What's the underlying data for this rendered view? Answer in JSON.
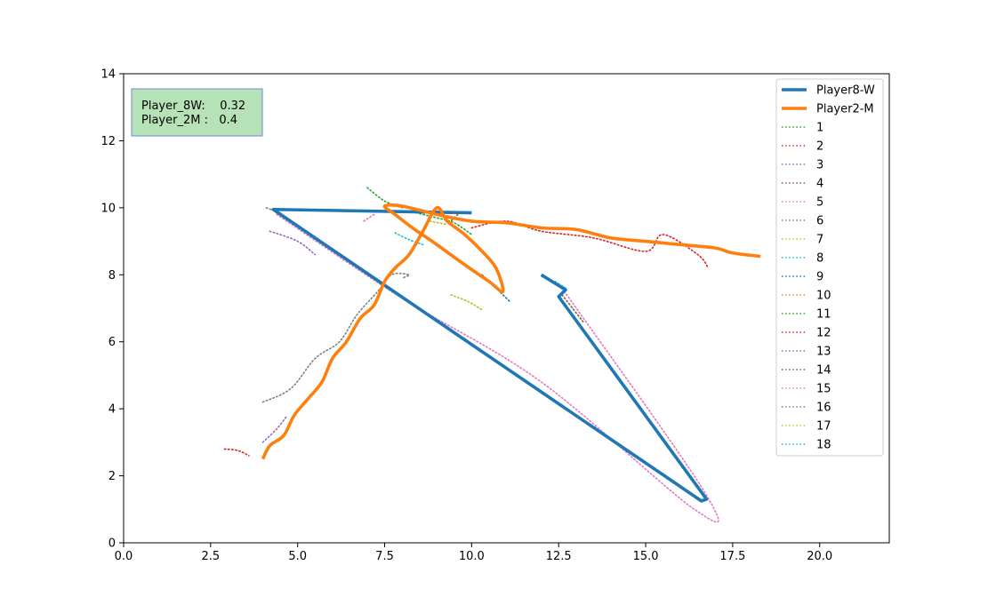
{
  "chart_data": {
    "type": "line",
    "title": "",
    "xlabel": "",
    "ylabel": "",
    "xlim": [
      0,
      22
    ],
    "ylim": [
      0,
      14
    ],
    "xticks": [
      "0.0",
      "2.5",
      "5.0",
      "7.5",
      "10.0",
      "12.5",
      "15.0",
      "17.5",
      "20.0"
    ],
    "xtick_values": [
      0,
      2.5,
      5,
      7.5,
      10,
      12.5,
      15,
      17.5,
      20
    ],
    "yticks": [
      "0",
      "2",
      "4",
      "6",
      "8",
      "10",
      "12",
      "14"
    ],
    "ytick_values": [
      0,
      2,
      4,
      6,
      8,
      10,
      12,
      14
    ],
    "grid": false,
    "legend_position": "top-right",
    "info_box": {
      "lines": [
        "Player_8W:    0.32",
        "Player_2M :   0.4"
      ],
      "background": "#b7e2b7",
      "border": "#6f84e8"
    },
    "series": [
      {
        "name": "Player8-W",
        "style": "solid",
        "color": "#1f77b4",
        "points": [
          [
            12.0,
            8.0
          ],
          [
            12.7,
            7.55
          ],
          [
            12.5,
            7.35
          ],
          [
            16.75,
            1.3
          ],
          [
            16.6,
            1.25
          ],
          [
            4.3,
            9.95
          ],
          [
            10.0,
            9.85
          ]
        ]
      },
      {
        "name": "Player2-M",
        "style": "solid",
        "color": "#ff7f0e",
        "points": [
          [
            4.0,
            2.5
          ],
          [
            4.2,
            2.9
          ],
          [
            4.6,
            3.2
          ],
          [
            4.9,
            3.8
          ],
          [
            5.3,
            4.3
          ],
          [
            5.7,
            4.8
          ],
          [
            6.0,
            5.5
          ],
          [
            6.4,
            6.0
          ],
          [
            6.8,
            6.7
          ],
          [
            7.2,
            7.1
          ],
          [
            7.5,
            7.8
          ],
          [
            7.8,
            8.2
          ],
          [
            8.2,
            8.6
          ],
          [
            8.6,
            9.3
          ],
          [
            9.0,
            10.0
          ],
          [
            9.3,
            9.6
          ],
          [
            9.8,
            9.2
          ],
          [
            10.3,
            8.7
          ],
          [
            10.7,
            8.2
          ],
          [
            10.9,
            7.5
          ],
          [
            10.5,
            7.8
          ],
          [
            9.8,
            8.3
          ],
          [
            9.0,
            8.9
          ],
          [
            8.3,
            9.4
          ],
          [
            7.8,
            9.8
          ],
          [
            7.5,
            10.05
          ],
          [
            8.0,
            10.05
          ],
          [
            9.0,
            9.8
          ],
          [
            10.0,
            9.6
          ],
          [
            11.0,
            9.55
          ],
          [
            12.0,
            9.4
          ],
          [
            13.0,
            9.35
          ],
          [
            14.0,
            9.1
          ],
          [
            15.0,
            9.0
          ],
          [
            16.0,
            8.9
          ],
          [
            17.0,
            8.8
          ],
          [
            17.5,
            8.65
          ],
          [
            18.3,
            8.55
          ]
        ]
      },
      {
        "name": "1",
        "style": "dotted",
        "color": "#2ca02c",
        "points": [
          [
            7.0,
            10.6
          ],
          [
            7.5,
            10.2
          ],
          [
            8.0,
            10.0
          ]
        ]
      },
      {
        "name": "2",
        "style": "dotted",
        "color": "#d62728",
        "points": [
          [
            2.9,
            2.8
          ],
          [
            3.3,
            2.75
          ],
          [
            3.6,
            2.6
          ]
        ]
      },
      {
        "name": "3",
        "style": "dotted",
        "color": "#9467bd",
        "points": [
          [
            4.0,
            3.0
          ],
          [
            4.4,
            3.4
          ],
          [
            4.7,
            3.8
          ]
        ]
      },
      {
        "name": "4",
        "style": "dotted",
        "color": "#8c564b",
        "points": [
          [
            9.6,
            9.8
          ],
          [
            9.4,
            9.6
          ]
        ]
      },
      {
        "name": "5",
        "style": "dotted",
        "color": "#e377c2",
        "points": [
          [
            6.9,
            9.6
          ],
          [
            7.2,
            9.8
          ]
        ]
      },
      {
        "name": "6",
        "style": "dotted",
        "color": "#7f7f7f",
        "points": [
          [
            4.0,
            4.2
          ],
          [
            4.8,
            4.6
          ],
          [
            5.5,
            5.5
          ],
          [
            6.2,
            6.0
          ],
          [
            6.7,
            6.8
          ],
          [
            7.3,
            7.5
          ],
          [
            7.7,
            8.0
          ],
          [
            8.2,
            8.0
          ],
          [
            8.0,
            7.9
          ]
        ]
      },
      {
        "name": "7",
        "style": "dotted",
        "color": "#bcbd22",
        "points": [
          [
            9.4,
            7.4
          ],
          [
            9.9,
            7.2
          ],
          [
            10.3,
            6.95
          ]
        ]
      },
      {
        "name": "8",
        "style": "dotted",
        "color": "#17becf",
        "points": [
          [
            7.8,
            9.25
          ],
          [
            8.2,
            9.05
          ],
          [
            8.6,
            8.9
          ]
        ]
      },
      {
        "name": "9",
        "style": "dotted",
        "color": "#1f77b4",
        "points": [
          [
            10.3,
            8.0
          ],
          [
            10.8,
            7.5
          ],
          [
            11.1,
            7.2
          ]
        ]
      },
      {
        "name": "10",
        "style": "dotted",
        "color": "#ff7f0e",
        "points": [
          [
            7.6,
            10.1
          ],
          [
            8.1,
            10.0
          ]
        ]
      },
      {
        "name": "11",
        "style": "dotted",
        "color": "#2ca02c",
        "points": [
          [
            8.2,
            9.9
          ],
          [
            9.0,
            9.7
          ],
          [
            9.5,
            9.55
          ],
          [
            10.0,
            9.2
          ]
        ]
      },
      {
        "name": "12",
        "style": "dotted",
        "color": "#d62728",
        "points": [
          [
            10.0,
            9.4
          ],
          [
            11.0,
            9.6
          ],
          [
            12.0,
            9.3
          ],
          [
            13.5,
            9.1
          ],
          [
            15.0,
            8.7
          ],
          [
            15.5,
            9.2
          ],
          [
            16.5,
            8.6
          ],
          [
            16.8,
            8.2
          ]
        ]
      },
      {
        "name": "13",
        "style": "dotted",
        "color": "#9467bd",
        "points": [
          [
            4.2,
            9.3
          ],
          [
            5.0,
            9.0
          ],
          [
            5.5,
            8.6
          ]
        ]
      },
      {
        "name": "14",
        "style": "dotted",
        "color": "#8c564b",
        "points": [
          [
            12.6,
            7.4
          ],
          [
            12.9,
            7.0
          ],
          [
            13.2,
            6.6
          ]
        ]
      },
      {
        "name": "15",
        "style": "dotted",
        "color": "#e377c2",
        "points": [
          [
            4.4,
            9.8
          ],
          [
            8.0,
            7.3
          ],
          [
            12.0,
            4.8
          ],
          [
            16.4,
            1.0
          ],
          [
            16.7,
            1.5
          ],
          [
            12.6,
            7.6
          ]
        ]
      },
      {
        "name": "16",
        "style": "dotted",
        "color": "#7f7f7f",
        "points": [
          [
            4.1,
            10.0
          ],
          [
            4.5,
            9.85
          ]
        ]
      },
      {
        "name": "17",
        "style": "dotted",
        "color": "#bcbd22",
        "points": [
          [
            8.8,
            9.6
          ],
          [
            9.3,
            9.5
          ]
        ]
      },
      {
        "name": "18",
        "style": "dotted",
        "color": "#17becf",
        "points": [
          [
            12.4,
            7.8
          ],
          [
            12.7,
            7.6
          ]
        ]
      }
    ]
  }
}
